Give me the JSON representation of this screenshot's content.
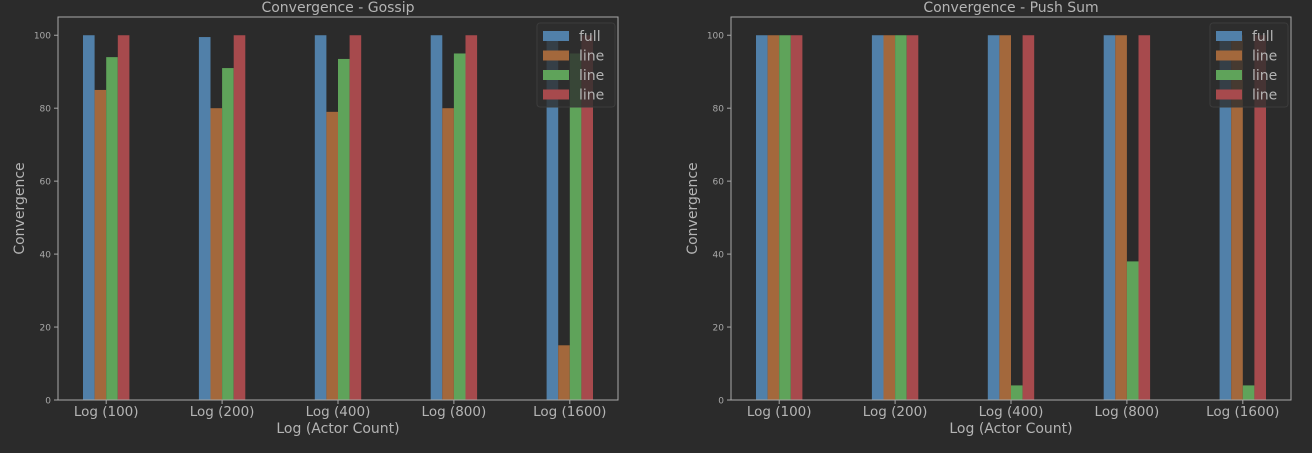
{
  "chart_data": [
    {
      "type": "bar",
      "title": "Convergence - Gossip",
      "xlabel": "Log (Actor Count)",
      "ylabel": "Convergence",
      "ylim": [
        0,
        105
      ],
      "yticks": [
        0,
        20,
        40,
        60,
        80,
        100
      ],
      "grid": false,
      "legend_position": "top-right",
      "categories": [
        "Log (100)",
        "Log (200)",
        "Log (400)",
        "Log (800)",
        "Log (1600)"
      ],
      "series": [
        {
          "name": "full",
          "color": "#5180a9",
          "values": [
            100,
            99.5,
            100,
            100,
            100
          ]
        },
        {
          "name": "line",
          "color": "#a3683c",
          "values": [
            85,
            80,
            79,
            80,
            15
          ]
        },
        {
          "name": "line",
          "color": "#5fa35a",
          "values": [
            94,
            91,
            93.5,
            95,
            95
          ]
        },
        {
          "name": "line",
          "color": "#a74a4d",
          "values": [
            100,
            100,
            100,
            100,
            100
          ]
        }
      ]
    },
    {
      "type": "bar",
      "title": "Convergence - Push Sum",
      "xlabel": "Log (Actor Count)",
      "ylabel": "Convergence",
      "ylim": [
        0,
        105
      ],
      "yticks": [
        0,
        20,
        40,
        60,
        80,
        100
      ],
      "grid": false,
      "legend_position": "top-right",
      "categories": [
        "Log (100)",
        "Log (200)",
        "Log (400)",
        "Log (800)",
        "Log (1600)"
      ],
      "series": [
        {
          "name": "full",
          "color": "#5180a9",
          "values": [
            100,
            100,
            100,
            100,
            100
          ]
        },
        {
          "name": "line",
          "color": "#a3683c",
          "values": [
            100,
            100,
            100,
            100,
            100
          ]
        },
        {
          "name": "line",
          "color": "#5fa35a",
          "values": [
            100,
            100,
            4,
            38,
            4
          ]
        },
        {
          "name": "line",
          "color": "#a74a4d",
          "values": [
            100,
            100,
            100,
            100,
            100
          ]
        }
      ]
    }
  ],
  "theme": {
    "background": "#2b2b2b",
    "axes_edge": "#a8a8a8",
    "text": "#b4b4b4",
    "tick_text": "#a8a8a8",
    "legend_background": "#2e2e2e"
  }
}
